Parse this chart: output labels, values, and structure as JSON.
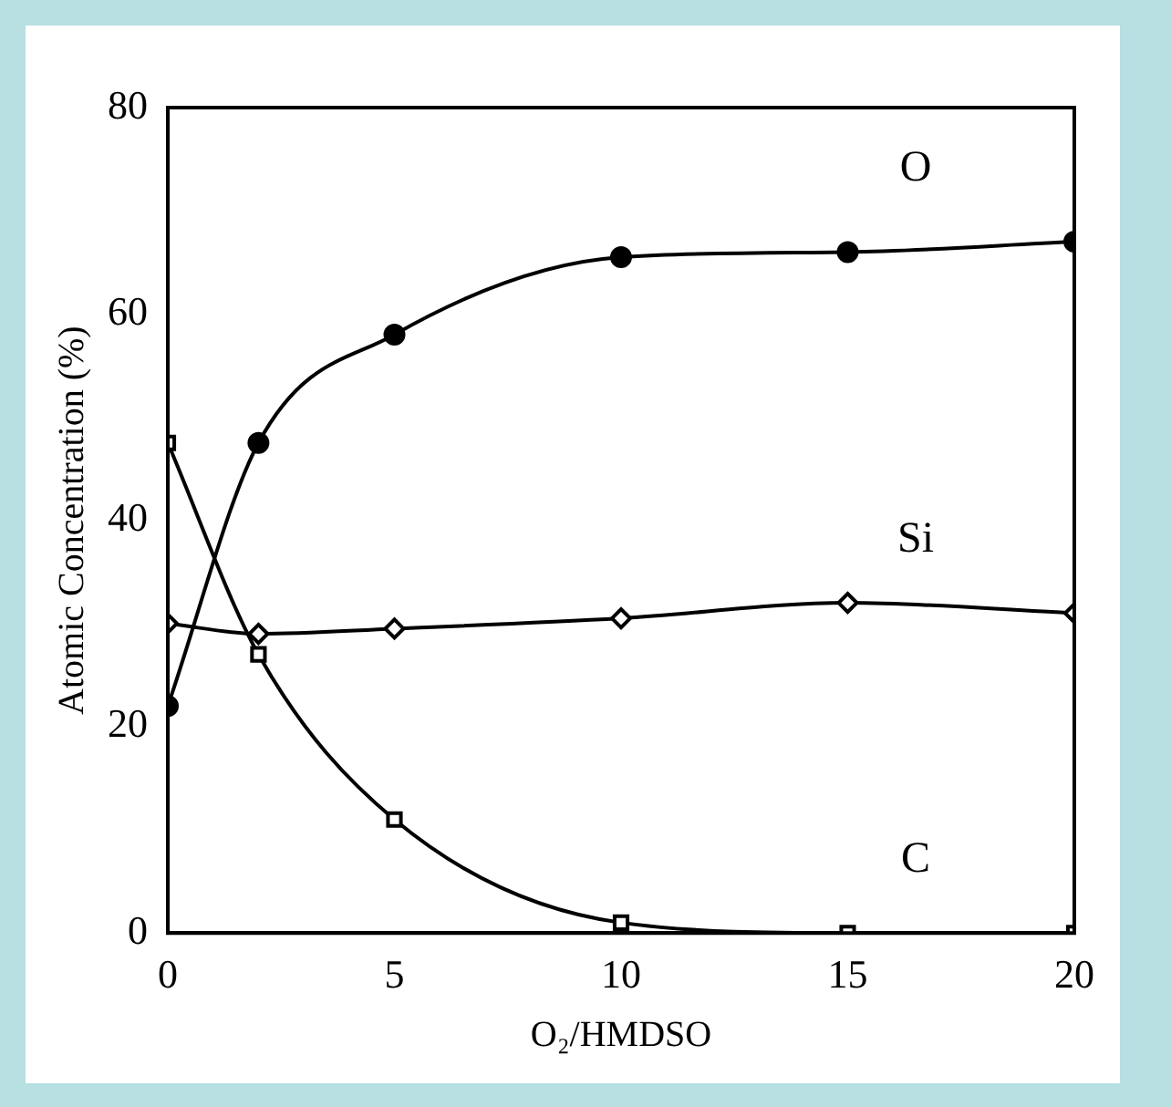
{
  "chart_data": {
    "type": "line",
    "xlabel": "O₂/HMDSO",
    "ylabel": "Atomic Concentration (%)",
    "xlim": [
      0,
      20
    ],
    "xticks": [
      0,
      5,
      10,
      15,
      20
    ],
    "ylim": [
      0,
      80
    ],
    "yticks": [
      0,
      20,
      40,
      60,
      80
    ],
    "grid": false,
    "legend": false,
    "series": [
      {
        "name": "O",
        "color": "#000000",
        "marker": "circle",
        "x": [
          0,
          2,
          5,
          10,
          15,
          20
        ],
        "values": [
          22,
          47.5,
          58,
          65.5,
          66,
          67
        ]
      },
      {
        "name": "Si",
        "color": "#000000",
        "marker": "diamond",
        "x": [
          0,
          2,
          5,
          10,
          15,
          20
        ],
        "values": [
          30,
          29,
          29.5,
          30.5,
          32,
          31
        ]
      },
      {
        "name": "C",
        "color": "#000000",
        "marker": "square",
        "x": [
          0,
          2,
          5,
          10,
          15,
          20
        ],
        "values": [
          47.5,
          27,
          11,
          1,
          0,
          0
        ]
      }
    ]
  }
}
